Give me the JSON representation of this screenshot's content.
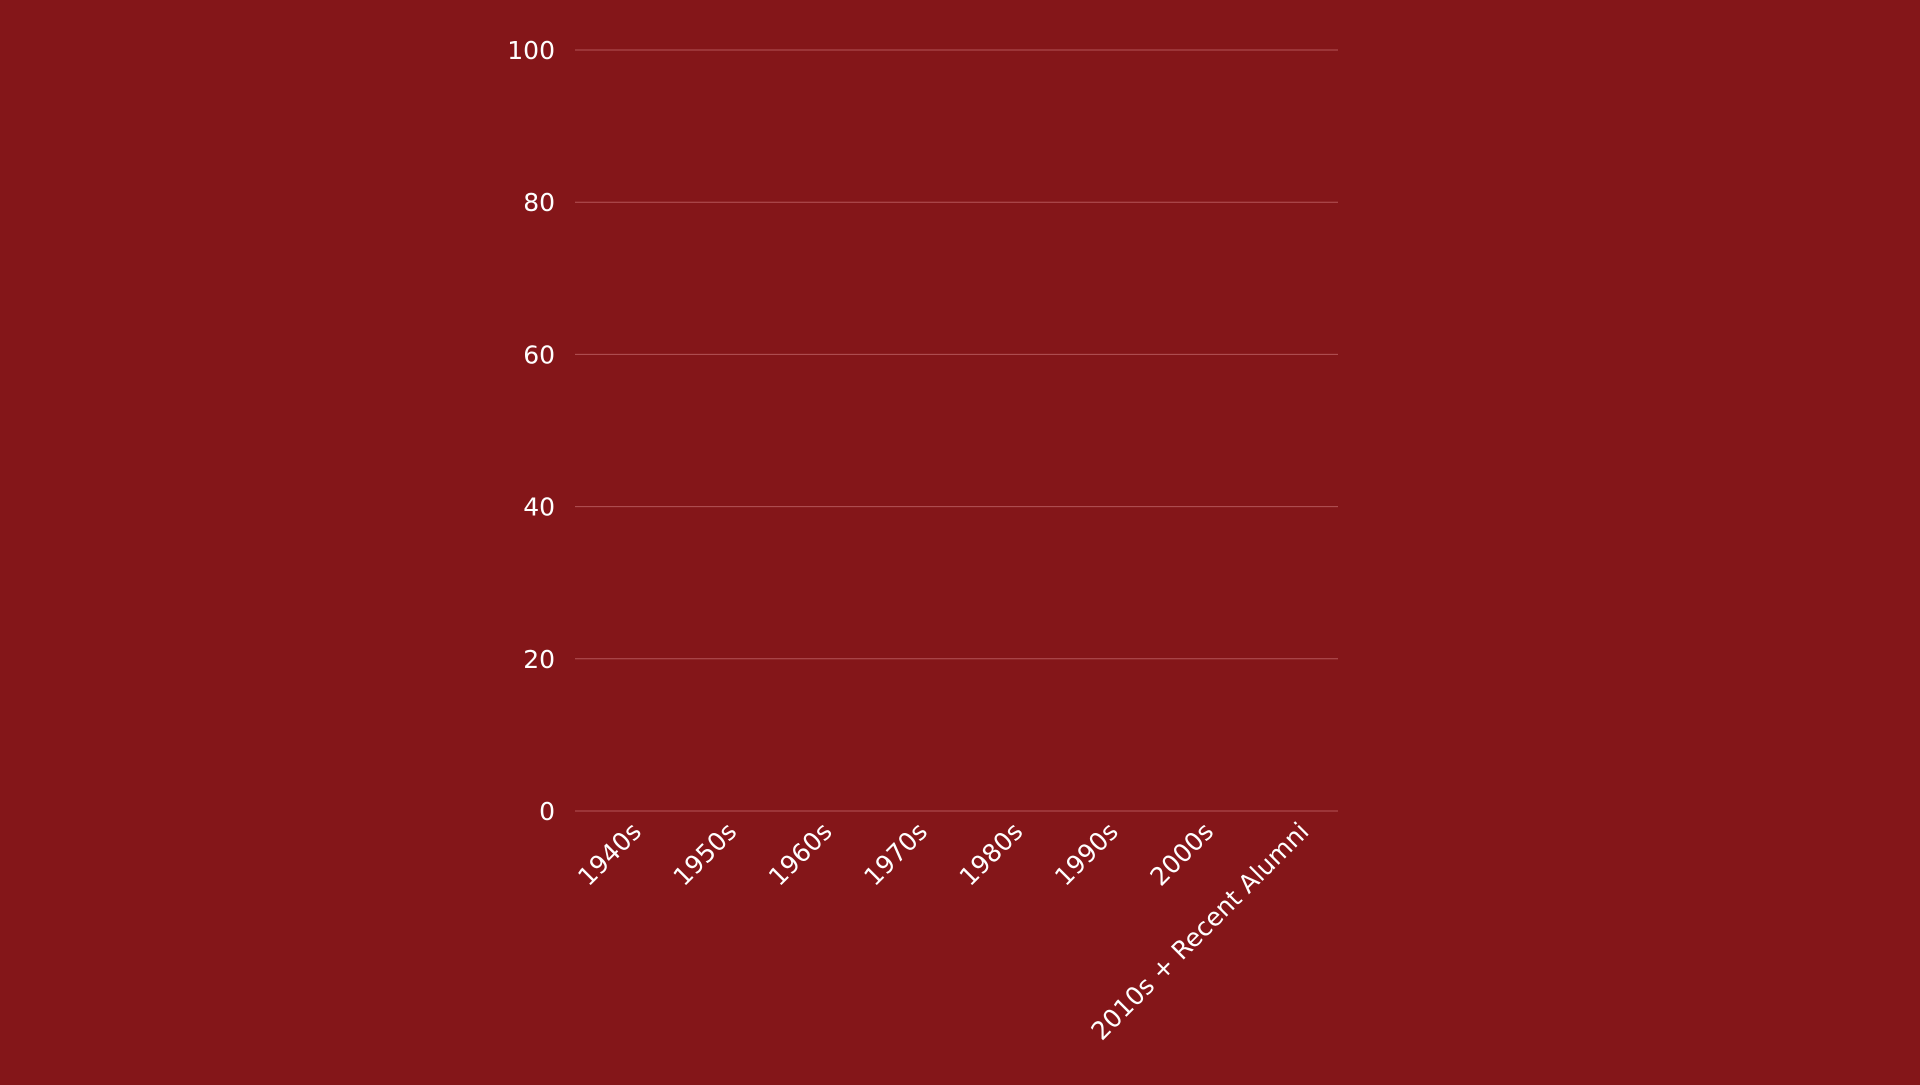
{
  "colors": {
    "background": "#841619",
    "gridline": "#b35457",
    "text": "#ffffff"
  },
  "chart_data": {
    "type": "bar",
    "categories": [
      "1940s",
      "1950s",
      "1960s",
      "1970s",
      "1980s",
      "1990s",
      "2000s",
      "2010s + Recent Alumni"
    ],
    "series": [
      {
        "values": [
          0,
          0,
          0,
          0,
          0,
          0,
          0,
          0
        ]
      }
    ],
    "ylim": [
      0,
      100
    ],
    "yticks": [
      0,
      20,
      40,
      60,
      80,
      100
    ],
    "grid": true,
    "legend": "none"
  }
}
